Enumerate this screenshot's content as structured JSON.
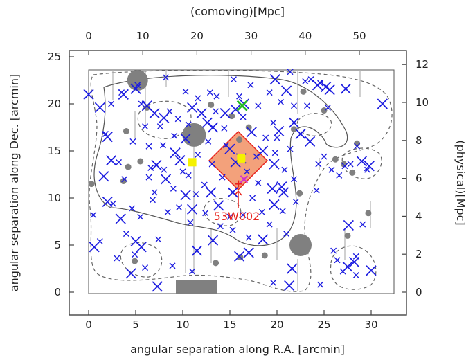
{
  "chart_data": {
    "type": "scatter",
    "title": "",
    "top_axis_label": "(comoving)[Mpc]",
    "xlabel": "angular separation along R.A. [arcmin]",
    "ylabel": "angular separation along Dec. [arcmin]",
    "right_axis_label": "(physical)[Mpc]",
    "xlim": [
      -2,
      32
    ],
    "ylim": [
      -2,
      26
    ],
    "x_ticks": [
      "0",
      "5",
      "10",
      "15",
      "20",
      "25",
      "30"
    ],
    "y_ticks": [
      "0",
      "5",
      "10",
      "15",
      "20",
      "25"
    ],
    "top_ticks": [
      "0",
      "10",
      "20",
      "30",
      "40",
      "50"
    ],
    "right_ticks": [
      "0",
      "2",
      "4",
      "6",
      "8",
      "10",
      "12"
    ],
    "annotation": {
      "text": "53W002",
      "x": 16.0,
      "y": 11.3
    },
    "colors": {
      "markers": "#1c1ce0",
      "gray": "#808080",
      "highlight": "#f08a5a",
      "annotation": "#e8231c",
      "yellow": "#f5f200",
      "green": "#22bb22"
    },
    "series": [
      {
        "marker": "x-large",
        "points": [
          [
            0,
            21
          ],
          [
            1.2,
            19.6
          ],
          [
            2,
            16.5
          ],
          [
            3.7,
            21
          ],
          [
            5,
            21.6
          ],
          [
            6.2,
            19.8
          ],
          [
            7,
            19
          ],
          [
            8,
            18.5
          ],
          [
            9.2,
            14.8
          ],
          [
            10.3,
            16.3
          ],
          [
            11,
            19.6
          ],
          [
            12,
            19
          ],
          [
            12.6,
            18
          ],
          [
            13.2,
            17.5
          ],
          [
            14.5,
            19
          ],
          [
            15.6,
            19.4
          ],
          [
            16.5,
            20
          ],
          [
            17.3,
            17
          ],
          [
            18.5,
            15
          ],
          [
            19.7,
            13.6
          ],
          [
            19.8,
            22.6
          ],
          [
            20.2,
            17.1
          ],
          [
            21,
            21.4
          ],
          [
            21.8,
            18
          ],
          [
            22.5,
            16.8
          ],
          [
            23.5,
            16
          ],
          [
            24.3,
            22
          ],
          [
            25.2,
            21.8
          ],
          [
            25.6,
            21.5
          ],
          [
            27.3,
            21.6
          ],
          [
            29,
            13.9
          ],
          [
            29.8,
            13.4
          ],
          [
            2.4,
            14
          ],
          [
            1.6,
            12.3
          ],
          [
            2,
            9.6
          ],
          [
            3.4,
            7.8
          ],
          [
            5,
            5.4
          ],
          [
            5.6,
            4.8
          ],
          [
            7.2,
            13.5
          ],
          [
            8.2,
            12
          ],
          [
            9.7,
            14
          ],
          [
            10.3,
            10.3
          ],
          [
            11,
            8.8
          ],
          [
            13,
            10.6
          ],
          [
            13.8,
            9.2
          ],
          [
            15.3,
            10.6
          ],
          [
            18.5,
            5.6
          ],
          [
            19.5,
            11
          ],
          [
            19.7,
            9.3
          ],
          [
            20.5,
            11.2
          ],
          [
            20.7,
            10.6
          ],
          [
            21.6,
            2.5
          ],
          [
            0.6,
            4.8
          ],
          [
            4.5,
            2
          ],
          [
            7.3,
            0.6
          ],
          [
            11.5,
            4.4
          ],
          [
            13.2,
            5.5
          ],
          [
            16,
            3.8
          ],
          [
            17,
            4.2
          ],
          [
            21.3,
            0.7
          ],
          [
            27.5,
            2.7
          ],
          [
            28.2,
            3.2
          ],
          [
            27.6,
            7.1
          ],
          [
            30,
            2.3
          ],
          [
            31.2,
            20
          ],
          [
            15,
            15.2
          ],
          [
            16.2,
            14.2
          ],
          [
            15.6,
            13.8
          ]
        ]
      },
      {
        "marker": "x-small",
        "points": [
          [
            1.2,
            5.4
          ],
          [
            2.6,
            9.4
          ],
          [
            3,
            3.6
          ],
          [
            3.2,
            13.8
          ],
          [
            3.8,
            12
          ],
          [
            4,
            6.2
          ],
          [
            4.7,
            16
          ],
          [
            5.2,
            22
          ],
          [
            5.6,
            20
          ],
          [
            6,
            17.6
          ],
          [
            6.4,
            15.5
          ],
          [
            6.6,
            13.2
          ],
          [
            6.8,
            9.8
          ],
          [
            7.6,
            17.6
          ],
          [
            7.9,
            15.6
          ],
          [
            8.2,
            22.8
          ],
          [
            8.6,
            19.2
          ],
          [
            9,
            11
          ],
          [
            9.6,
            9
          ],
          [
            10.3,
            21.3
          ],
          [
            10.6,
            12.4
          ],
          [
            10.8,
            7.4
          ],
          [
            11.6,
            20.6
          ],
          [
            11.6,
            14.6
          ],
          [
            12.3,
            11.4
          ],
          [
            12.7,
            16
          ],
          [
            12.9,
            21.2
          ],
          [
            13.5,
            19.2
          ],
          [
            14.2,
            12.2
          ],
          [
            14.6,
            15.6
          ],
          [
            15,
            8
          ],
          [
            15.4,
            22.6
          ],
          [
            16,
            20.8
          ],
          [
            16.4,
            18.6
          ],
          [
            16.8,
            12.8
          ],
          [
            17.2,
            22
          ],
          [
            17.4,
            10
          ],
          [
            17.8,
            14.4
          ],
          [
            18,
            19.8
          ],
          [
            18.4,
            8.5
          ],
          [
            19.2,
            7.2
          ],
          [
            19.2,
            21.2
          ],
          [
            19.6,
            18
          ],
          [
            20,
            16.4
          ],
          [
            20.4,
            20.2
          ],
          [
            20.8,
            13
          ],
          [
            21,
            6.2
          ],
          [
            21.4,
            23.4
          ],
          [
            21.8,
            19.8
          ],
          [
            21.8,
            12
          ],
          [
            23,
            22.4
          ],
          [
            23.6,
            22.6
          ],
          [
            24.4,
            13.6
          ],
          [
            24.6,
            22.2
          ],
          [
            25,
            14.4
          ],
          [
            25.4,
            19.6
          ],
          [
            26,
            4.4
          ],
          [
            26.4,
            3.4
          ],
          [
            27,
            2.2
          ],
          [
            27.2,
            13.4
          ],
          [
            27.8,
            13.6
          ],
          [
            28.4,
            3.8
          ],
          [
            28.5,
            15.5
          ],
          [
            29.1,
            7.2
          ],
          [
            0.5,
            8.2
          ],
          [
            1.8,
            16.8
          ],
          [
            2.4,
            20
          ],
          [
            3.5,
            21.2
          ],
          [
            4.6,
            8.9
          ],
          [
            5.5,
            8
          ],
          [
            6,
            2.6
          ],
          [
            6.4,
            12.2
          ],
          [
            7,
            10.6
          ],
          [
            7.4,
            5.6
          ],
          [
            8,
            13
          ],
          [
            8.4,
            8.5
          ],
          [
            9.1,
            16.6
          ],
          [
            9.5,
            18.4
          ],
          [
            10,
            12.8
          ],
          [
            10.6,
            17.8
          ],
          [
            11.4,
            10.4
          ],
          [
            12.4,
            8.4
          ],
          [
            13.1,
            13.6
          ],
          [
            13.6,
            20.8
          ],
          [
            14,
            7
          ],
          [
            14.4,
            17.4
          ],
          [
            15.3,
            6.6
          ],
          [
            16.4,
            8.2
          ],
          [
            17,
            5.8
          ],
          [
            18,
            11.6
          ],
          [
            18.8,
            16.4
          ],
          [
            19.8,
            14.8
          ],
          [
            20.6,
            8.6
          ],
          [
            21.4,
            15.2
          ],
          [
            22,
            9.6
          ],
          [
            23.2,
            19.8
          ],
          [
            24.2,
            10.8
          ],
          [
            25.8,
            13
          ],
          [
            26.6,
            12.4
          ],
          [
            28.4,
            1.8
          ],
          [
            29.6,
            13
          ],
          [
            24.6,
            0.8
          ],
          [
            19.6,
            1
          ],
          [
            11,
            2.2
          ],
          [
            8.9,
            2.8
          ],
          [
            4.9,
            4
          ]
        ]
      },
      {
        "marker": "gray-disc",
        "points": [
          [
            5.2,
            22.5
          ],
          [
            11.2,
            16.7
          ],
          [
            22.5,
            5
          ],
          [
            4,
            17.1
          ],
          [
            4.2,
            13.3
          ],
          [
            5.5,
            13.9
          ],
          [
            0.3,
            11.5
          ],
          [
            3.7,
            11.8
          ],
          [
            6.2,
            19.6
          ],
          [
            13,
            19.9
          ],
          [
            16,
            16.2
          ],
          [
            15.2,
            18.7
          ],
          [
            17,
            17.5
          ],
          [
            18.7,
            3.9
          ],
          [
            16.1,
            3.7
          ],
          [
            13.5,
            3.1
          ],
          [
            22.4,
            10.5
          ],
          [
            21.8,
            17.3
          ],
          [
            22.8,
            21.3
          ],
          [
            25,
            19.3
          ],
          [
            28,
            12.7
          ],
          [
            28.5,
            15.8
          ],
          [
            27.1,
            13.6
          ],
          [
            29.7,
            8.4
          ],
          [
            26.2,
            14.1
          ],
          [
            27.5,
            6
          ],
          [
            4.9,
            3.3
          ]
        ]
      },
      {
        "marker": "yellow-square",
        "points": [
          [
            11,
            13.8
          ],
          [
            16.2,
            14.2
          ]
        ]
      },
      {
        "marker": "green-x",
        "points": [
          [
            16.3,
            19.8
          ]
        ]
      },
      {
        "marker": "magenta-x",
        "points": [
          [
            16.5,
            12
          ]
        ]
      },
      {
        "marker": "red-cross",
        "points": [
          [
            15.9,
            11.5
          ]
        ]
      }
    ]
  }
}
